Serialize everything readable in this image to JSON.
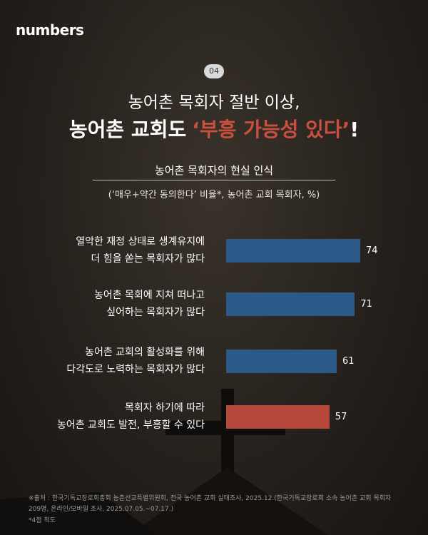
{
  "logo": "numbers",
  "badge": "04",
  "title": "농어촌 목회자 절반 이상,",
  "headline": {
    "text": "농어촌 교회도",
    "highlight": "‘부흥 가능성 있다’",
    "suffix": "!"
  },
  "chart_data": {
    "type": "bar",
    "orientation": "horizontal",
    "title": "농어촌 목회자의 현실 인식",
    "subtitle": "(‘매우+약간 동의한다’ 비율*, 농어촌 교회 목회자, %)",
    "categories": [
      "열악한 재정 상태로 생계유지에\n더 힘을 쏟는 목회자가 많다",
      "농어촌 목회에 지쳐 떠나고\n싶어하는 목회자가 많다",
      "농어촌 교회의 활성화를 위해\n다각도로 노력하는 목회자가 많다",
      "목회자 하기에 따라\n농어촌 교회도 발전, 부흥할 수 있다"
    ],
    "values": [
      74,
      71,
      61,
      57
    ],
    "colors": [
      "#2e5a8a",
      "#2e5a8a",
      "#2e5a8a",
      "#b4473a"
    ]
  },
  "source": "※출처 : 한국기독교장로회총회 농촌선교특별위원회, 전국 농어촌 교회 실태조사, 2025.12.(한국기독교장로회 소속 농어촌 교회 목회자 209명, 온라인/모바일 조사, 2025.07.05.~07.17.)",
  "note": "*4점 척도"
}
